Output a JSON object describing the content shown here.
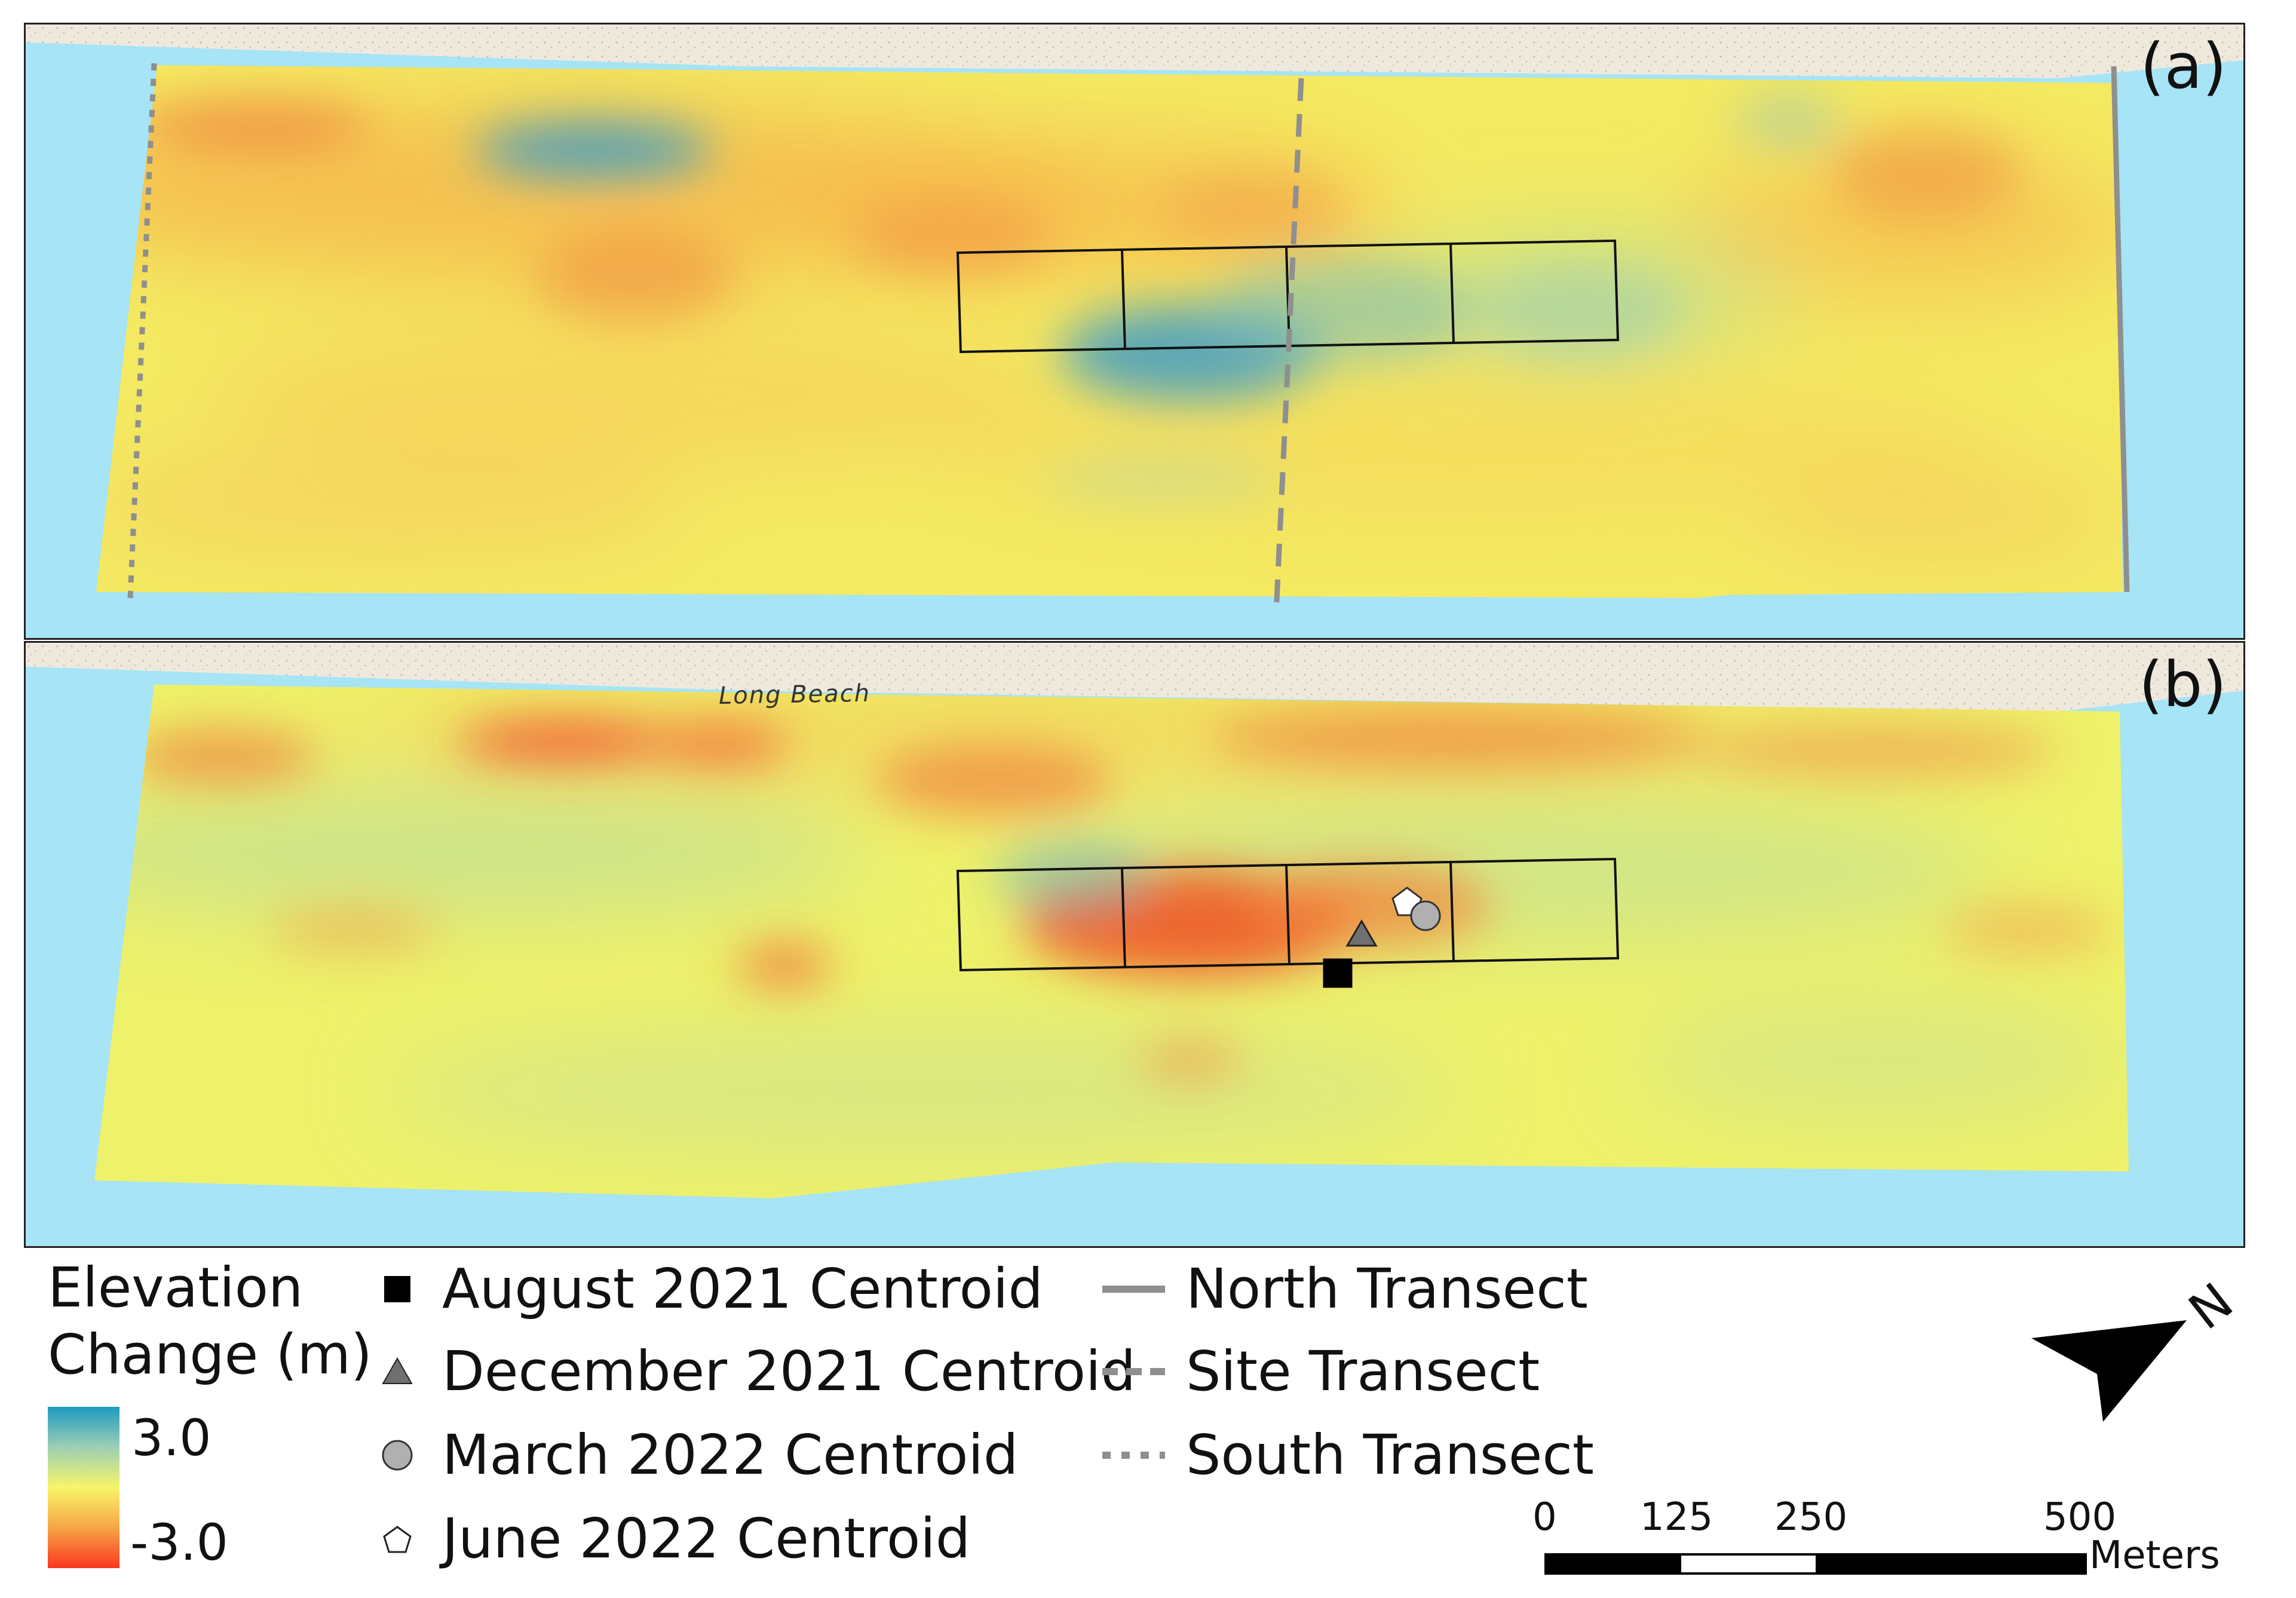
{
  "panels": [
    {
      "label": "(a)",
      "place_labels": []
    },
    {
      "label": "(b)",
      "place_labels": [
        "Long Beach"
      ]
    }
  ],
  "legend": {
    "colorbar": {
      "title_line1": "Elevation",
      "title_line2": "Change (m)",
      "max_label": "3.0",
      "min_label": "-3.0",
      "color_high": "#1f9ac0",
      "color_mid": "#f7f56a",
      "color_low": "#f8381f"
    },
    "centroids": [
      {
        "label": "August 2021 Centroid",
        "icon": "square-marker-icon",
        "color": "#000000"
      },
      {
        "label": "December 2021 Centroid",
        "icon": "triangle-marker-icon",
        "color": "#707070"
      },
      {
        "label": "March 2022 Centroid",
        "icon": "circle-marker-icon",
        "color": "#b0b0b0"
      },
      {
        "label": "June 2022 Centroid",
        "icon": "pentagon-marker-icon",
        "color": "#ffffff"
      }
    ],
    "transects": [
      {
        "label": "North Transect",
        "style": "solid"
      },
      {
        "label": "Site Transect",
        "style": "dashed"
      },
      {
        "label": "South Transect",
        "style": "dotted"
      }
    ]
  },
  "scale_bar": {
    "ticks": [
      "0",
      "125",
      "250",
      "500"
    ],
    "unit": "Meters"
  },
  "north_arrow": {
    "label": "N"
  },
  "colors": {
    "water": "#a6e4f6",
    "land": "#efe9dd",
    "transect": "#8f8f8f"
  }
}
